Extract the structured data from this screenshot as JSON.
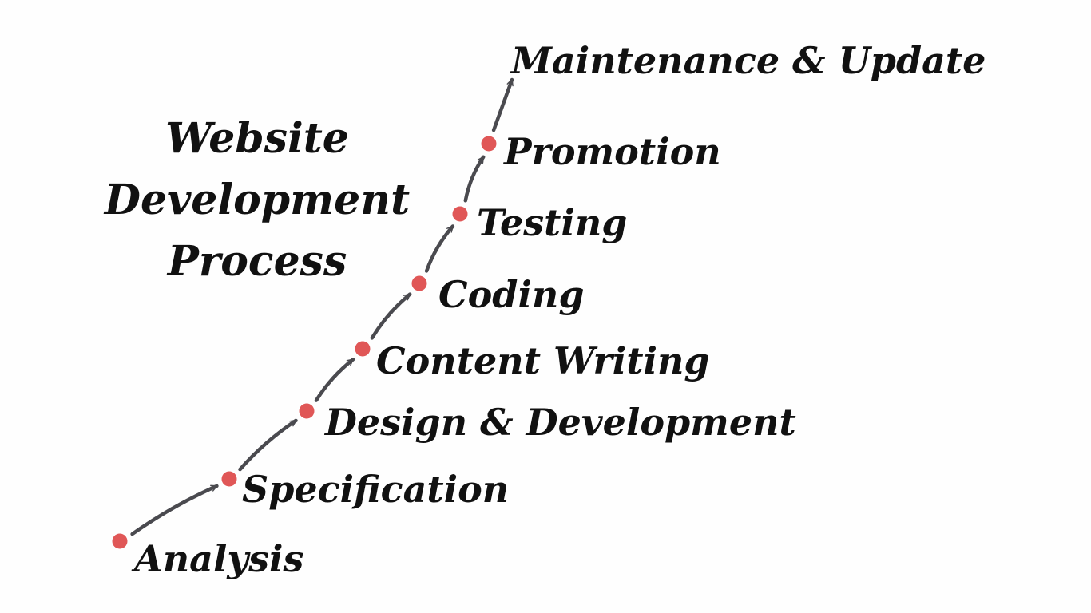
{
  "diagram": {
    "title_lines": [
      "Website",
      "Development",
      "Process"
    ],
    "steps": [
      "Analysis",
      "Specification",
      "Design & Development",
      "Content Writing",
      "Coding",
      "Testing",
      "Promotion",
      "Maintenance & Update"
    ],
    "colors": {
      "background": "#fefefe",
      "text": "#111111",
      "arrow": "#4a4a4f",
      "dot": "#e05757"
    }
  }
}
